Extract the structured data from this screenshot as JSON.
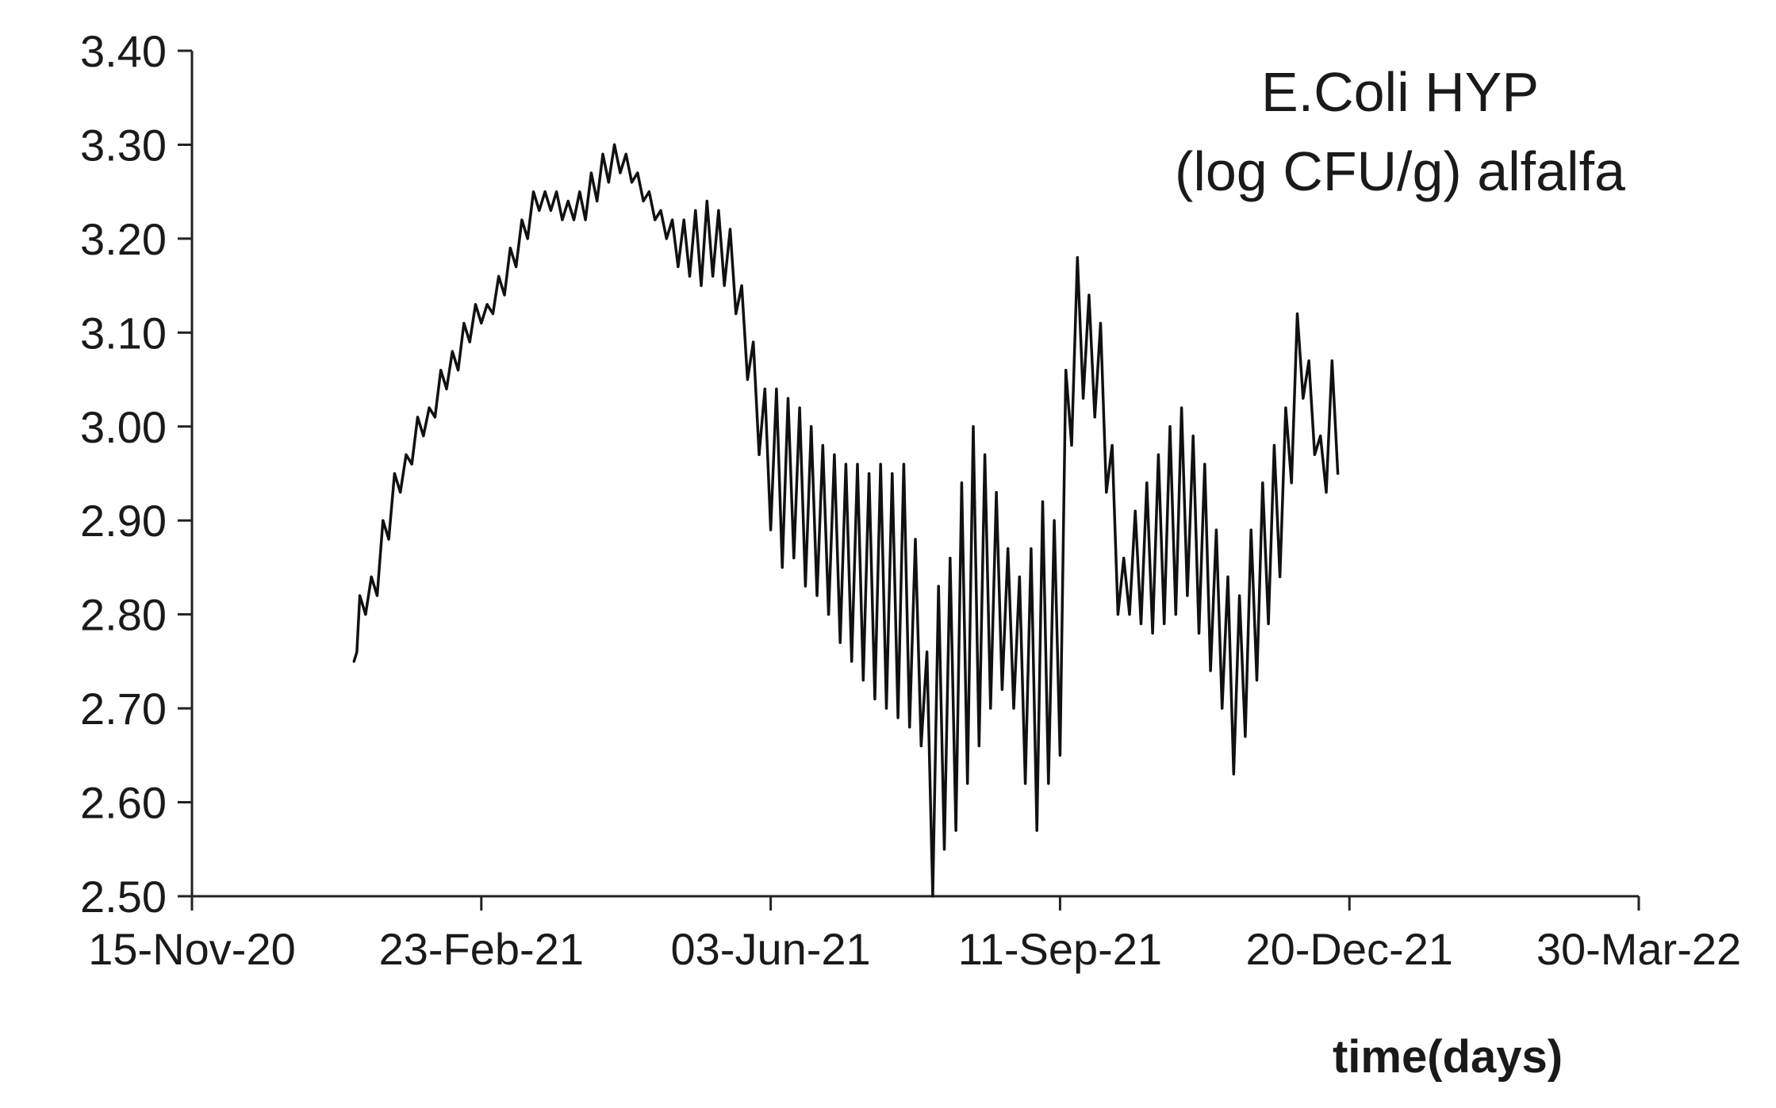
{
  "chart_data": {
    "type": "line",
    "title_lines": [
      "E.Coli HYP",
      "(log CFU/g) alfalfa"
    ],
    "xlabel": "time(days)",
    "ylabel": "",
    "x_ticks": [
      "15-Nov-20",
      "23-Feb-21",
      "03-Jun-21",
      "11-Sep-21",
      "20-Dec-21",
      "30-Mar-22"
    ],
    "y_ticks": [
      "2.50",
      "2.60",
      "2.70",
      "2.80",
      "2.90",
      "3.00",
      "3.10",
      "3.20",
      "3.30",
      "3.40"
    ],
    "xlim": [
      "2020-11-15",
      "2022-03-30"
    ],
    "ylim": [
      2.5,
      3.4
    ],
    "grid": false,
    "line_color": "#111111",
    "series": [
      {
        "x": [
          "2021-01-10",
          "2021-01-11",
          "2021-01-12",
          "2021-01-14",
          "2021-01-16",
          "2021-01-18",
          "2021-01-20",
          "2021-01-22",
          "2021-01-24",
          "2021-01-26",
          "2021-01-28",
          "2021-01-30",
          "2021-02-01",
          "2021-02-03",
          "2021-02-05",
          "2021-02-07",
          "2021-02-09",
          "2021-02-11",
          "2021-02-13",
          "2021-02-15",
          "2021-02-17",
          "2021-02-19",
          "2021-02-21",
          "2021-02-23",
          "2021-02-25",
          "2021-02-27",
          "2021-03-01",
          "2021-03-03",
          "2021-03-05",
          "2021-03-07",
          "2021-03-09",
          "2021-03-11",
          "2021-03-13",
          "2021-03-15",
          "2021-03-17",
          "2021-03-19",
          "2021-03-21",
          "2021-03-23",
          "2021-03-25",
          "2021-03-27",
          "2021-03-29",
          "2021-03-31",
          "2021-04-02",
          "2021-04-04",
          "2021-04-06",
          "2021-04-08",
          "2021-04-10",
          "2021-04-12",
          "2021-04-14",
          "2021-04-16",
          "2021-04-18",
          "2021-04-20",
          "2021-04-22",
          "2021-04-24",
          "2021-04-26",
          "2021-04-28",
          "2021-04-30",
          "2021-05-02",
          "2021-05-04",
          "2021-05-06",
          "2021-05-08",
          "2021-05-10",
          "2021-05-12",
          "2021-05-14",
          "2021-05-16",
          "2021-05-18",
          "2021-05-20",
          "2021-05-22",
          "2021-05-24",
          "2021-05-26",
          "2021-05-28",
          "2021-05-30",
          "2021-06-01",
          "2021-06-03",
          "2021-06-05",
          "2021-06-07",
          "2021-06-09",
          "2021-06-11",
          "2021-06-13",
          "2021-06-15",
          "2021-06-17",
          "2021-06-19",
          "2021-06-21",
          "2021-06-23",
          "2021-06-25",
          "2021-06-27",
          "2021-06-29",
          "2021-07-01",
          "2021-07-03",
          "2021-07-05",
          "2021-07-07",
          "2021-07-09",
          "2021-07-11",
          "2021-07-13",
          "2021-07-15",
          "2021-07-17",
          "2021-07-19",
          "2021-07-21",
          "2021-07-23",
          "2021-07-25",
          "2021-07-27",
          "2021-07-29",
          "2021-07-31",
          "2021-08-02",
          "2021-08-04",
          "2021-08-06",
          "2021-08-08",
          "2021-08-10",
          "2021-08-12",
          "2021-08-14",
          "2021-08-16",
          "2021-08-18",
          "2021-08-20",
          "2021-08-22",
          "2021-08-24",
          "2021-08-26",
          "2021-08-28",
          "2021-08-30",
          "2021-09-01",
          "2021-09-03",
          "2021-09-05",
          "2021-09-07",
          "2021-09-09",
          "2021-09-11",
          "2021-09-13",
          "2021-09-15",
          "2021-09-17",
          "2021-09-19",
          "2021-09-21",
          "2021-09-23",
          "2021-09-25",
          "2021-09-27",
          "2021-09-29",
          "2021-10-01",
          "2021-10-03",
          "2021-10-05",
          "2021-10-07",
          "2021-10-09",
          "2021-10-11",
          "2021-10-13",
          "2021-10-15",
          "2021-10-17",
          "2021-10-19",
          "2021-10-21",
          "2021-10-23",
          "2021-10-25",
          "2021-10-27",
          "2021-10-29",
          "2021-10-31",
          "2021-11-02",
          "2021-11-04",
          "2021-11-06",
          "2021-11-08",
          "2021-11-10",
          "2021-11-12",
          "2021-11-14",
          "2021-11-16",
          "2021-11-18",
          "2021-11-20",
          "2021-11-22",
          "2021-11-24",
          "2021-11-26",
          "2021-11-28",
          "2021-11-30",
          "2021-12-02",
          "2021-12-04",
          "2021-12-06",
          "2021-12-08",
          "2021-12-10",
          "2021-12-12",
          "2021-12-14",
          "2021-12-16"
        ],
        "y": [
          2.75,
          2.76,
          2.82,
          2.8,
          2.84,
          2.82,
          2.9,
          2.88,
          2.95,
          2.93,
          2.97,
          2.96,
          3.01,
          2.99,
          3.02,
          3.01,
          3.06,
          3.04,
          3.08,
          3.06,
          3.11,
          3.09,
          3.13,
          3.11,
          3.13,
          3.12,
          3.16,
          3.14,
          3.19,
          3.17,
          3.22,
          3.2,
          3.25,
          3.23,
          3.25,
          3.23,
          3.25,
          3.22,
          3.24,
          3.22,
          3.25,
          3.22,
          3.27,
          3.24,
          3.29,
          3.26,
          3.3,
          3.27,
          3.29,
          3.26,
          3.27,
          3.24,
          3.25,
          3.22,
          3.23,
          3.2,
          3.22,
          3.17,
          3.22,
          3.16,
          3.23,
          3.15,
          3.24,
          3.16,
          3.23,
          3.15,
          3.21,
          3.12,
          3.15,
          3.05,
          3.09,
          2.97,
          3.04,
          2.89,
          3.04,
          2.85,
          3.03,
          2.86,
          3.02,
          2.83,
          3.0,
          2.82,
          2.98,
          2.8,
          2.97,
          2.77,
          2.96,
          2.75,
          2.96,
          2.73,
          2.95,
          2.71,
          2.96,
          2.7,
          2.95,
          2.69,
          2.96,
          2.68,
          2.88,
          2.66,
          2.76,
          2.5,
          2.83,
          2.55,
          2.86,
          2.57,
          2.94,
          2.62,
          3.0,
          2.66,
          2.97,
          2.7,
          2.93,
          2.72,
          2.87,
          2.7,
          2.84,
          2.62,
          2.87,
          2.57,
          2.92,
          2.62,
          2.9,
          2.65,
          3.06,
          2.98,
          3.18,
          3.03,
          3.14,
          3.01,
          3.11,
          2.93,
          2.98,
          2.8,
          2.86,
          2.8,
          2.91,
          2.79,
          2.94,
          2.78,
          2.97,
          2.79,
          3.0,
          2.8,
          3.02,
          2.82,
          2.99,
          2.78,
          2.96,
          2.74,
          2.89,
          2.7,
          2.84,
          2.63,
          2.82,
          2.67,
          2.89,
          2.73,
          2.94,
          2.79,
          2.98,
          2.84,
          3.02,
          2.94,
          3.12,
          3.03,
          3.07,
          2.97,
          2.99,
          2.93,
          3.07,
          2.95
        ]
      }
    ]
  }
}
